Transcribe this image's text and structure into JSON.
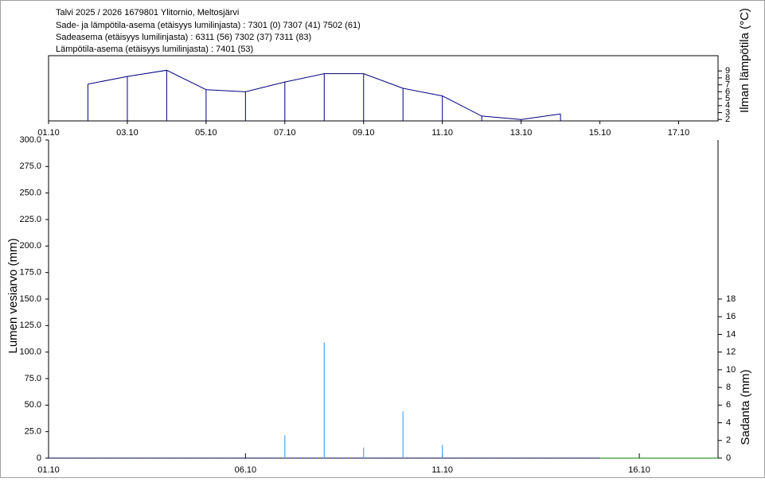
{
  "header": {
    "lines": [
      "Talvi 2025 / 2026 1679801 Ylitornio, Meltosjärvi",
      "Sade- ja lämpötila-asema (etäisyys lumilinjasta) :  7301 (0) 7307 (41) 7502 (61)",
      "Sadeasema (etäisyys lumilinjasta) :  6311 (56) 7302 (37) 7311 (83)",
      "Lämpötila-asema (etäisyys lumilinjasta) :  7401 (53)"
    ]
  },
  "chart_data": [
    {
      "type": "line",
      "ylabel": "Ilman lämpötila (°C)",
      "stems": true,
      "xlim": [
        "01.10",
        "18.10"
      ],
      "xticks": [
        "01.10",
        "03.10",
        "05.10",
        "07.10",
        "09.10",
        "11.10",
        "13.10",
        "15.10",
        "17.10"
      ],
      "ylim": [
        1.8,
        11.2
      ],
      "yticks": [
        2,
        3,
        4,
        5,
        6,
        7,
        8,
        9
      ],
      "series": [
        {
          "color": "#000080",
          "x": [
            "02.10",
            "03.10",
            "04.10",
            "05.10",
            "06.10",
            "07.10",
            "08.10",
            "09.10",
            "10.10",
            "11.10",
            "12.10",
            "13.10",
            "14.10"
          ],
          "values": [
            7.1,
            8.2,
            9.1,
            6.3,
            6.0,
            7.4,
            8.6,
            8.6,
            6.5,
            5.4,
            2.5,
            2.0,
            2.8
          ]
        }
      ]
    },
    {
      "type": "bar",
      "ylabel": "Lumen vesiarvo (mm)",
      "y2label": "Sadanta (mm)",
      "xlim": [
        "01.10",
        "18.10"
      ],
      "xticks": [
        "01.10",
        "06.10",
        "11.10",
        "16.10"
      ],
      "ylim": [
        0,
        300
      ],
      "yticks": [
        {
          "value": 0,
          "label": "0"
        },
        {
          "value": 25,
          "label": "25.0"
        },
        {
          "value": 50,
          "label": "50.0"
        },
        {
          "value": 75,
          "label": "75.0"
        },
        {
          "value": 100,
          "label": "100.0"
        },
        {
          "value": 125,
          "label": "125.0"
        },
        {
          "value": 150,
          "label": "150.0"
        },
        {
          "value": 175,
          "label": "175.0"
        },
        {
          "value": 200,
          "label": "200.0"
        },
        {
          "value": 225,
          "label": "225.0"
        },
        {
          "value": 250,
          "label": "250.0"
        },
        {
          "value": 275,
          "label": "275.0"
        },
        {
          "value": 300,
          "label": "300.0"
        }
      ],
      "y2lim": [
        0,
        36
      ],
      "y2ticks": [
        0,
        2,
        4,
        6,
        8,
        10,
        12,
        14,
        16,
        18
      ],
      "series": [
        {
          "type": "line",
          "color": "#000080",
          "dashed": true,
          "x": [
            "01.10",
            "02.10",
            "03.10",
            "04.10",
            "05.10",
            "06.10",
            "07.10",
            "08.10",
            "09.10",
            "10.10",
            "11.10",
            "12.10",
            "13.10",
            "14.10",
            "15.10"
          ],
          "values": [
            0,
            0,
            0,
            0,
            0,
            0,
            0,
            0,
            0,
            0,
            0,
            0,
            0,
            0,
            0
          ]
        },
        {
          "type": "line",
          "color": "#008000",
          "dashed": false,
          "x": [
            "15.10",
            "16.10",
            "17.10",
            "18.10"
          ],
          "values": [
            0,
            0,
            0,
            0
          ]
        },
        {
          "type": "bar",
          "axis": "y2",
          "color": "#4da6e8",
          "x": [
            "07.10",
            "08.10",
            "09.10",
            "10.10",
            "11.10"
          ],
          "values": [
            2.6,
            13.1,
            1.2,
            5.3,
            1.5
          ]
        }
      ]
    }
  ]
}
